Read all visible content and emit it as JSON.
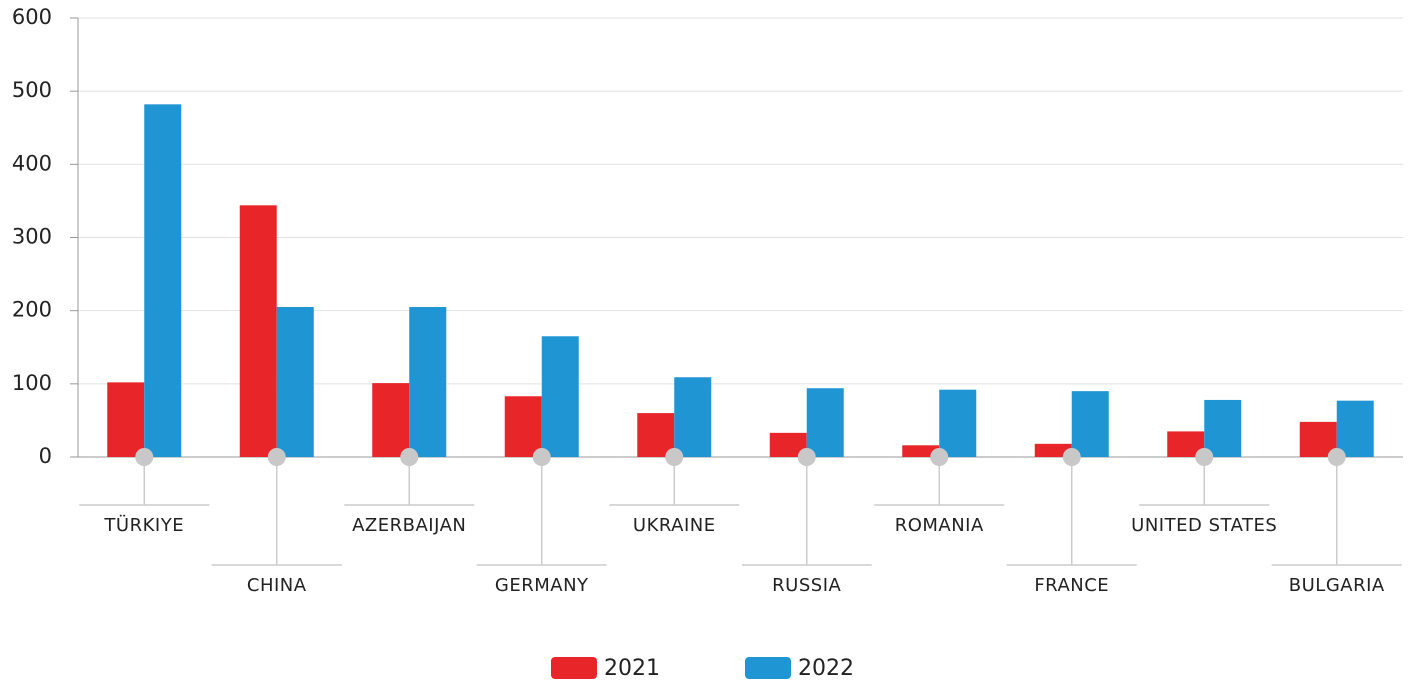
{
  "chart_data": {
    "type": "bar",
    "categories": [
      "TÜRKIYE",
      "CHINA",
      "AZERBAIJAN",
      "GERMANY",
      "UKRAINE",
      "RUSSIA",
      "ROMANIA",
      "FRANCE",
      "UNITED STATES",
      "BULGARIA"
    ],
    "series": [
      {
        "name": "2021",
        "color": "#e8262a",
        "values": [
          102,
          344,
          101,
          83,
          60,
          33,
          16,
          18,
          35,
          48
        ]
      },
      {
        "name": "2022",
        "color": "#1f95d3",
        "values": [
          482,
          205,
          205,
          165,
          109,
          94,
          92,
          90,
          78,
          77
        ]
      }
    ],
    "ylim": [
      0,
      600
    ],
    "yticks": [
      0,
      100,
      200,
      300,
      400,
      500,
      600
    ],
    "grid": true
  }
}
